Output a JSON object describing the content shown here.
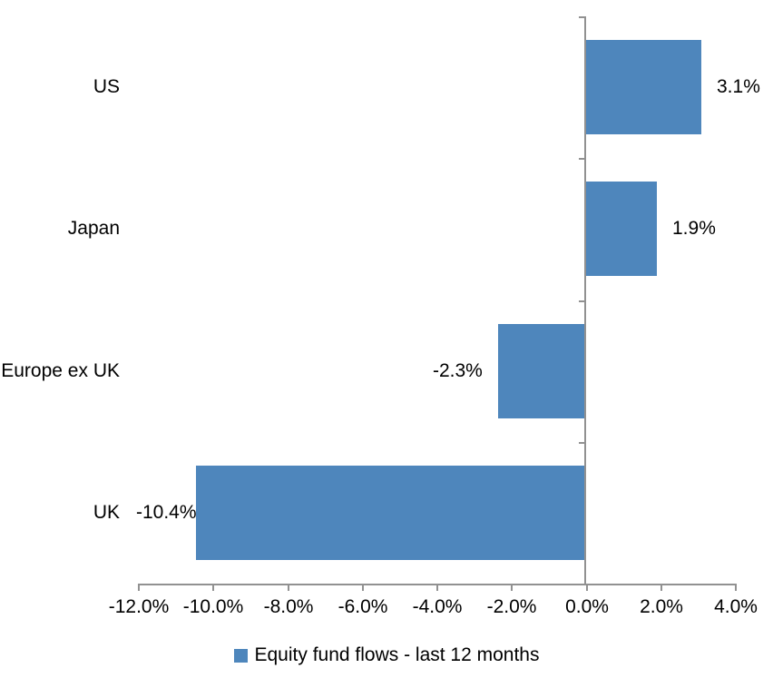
{
  "chart_data": {
    "type": "bar",
    "orientation": "horizontal",
    "title": "",
    "categories": [
      "US",
      "Japan",
      "Europe ex UK",
      "UK"
    ],
    "values": [
      3.1,
      1.9,
      -2.3,
      -10.4
    ],
    "data_labels": [
      "3.1%",
      "1.9%",
      "-2.3%",
      "-10.4%"
    ],
    "series": [
      {
        "name": "Equity fund flows - last 12 months",
        "values": [
          3.1,
          1.9,
          -2.3,
          -10.4
        ],
        "color": "#4E86BC"
      }
    ],
    "xlabel": "",
    "ylabel": "",
    "xlim": [
      -12,
      4
    ],
    "x_tick_step": 2,
    "x_tick_labels": [
      "-12.0%",
      "-10.0%",
      "-8.0%",
      "-6.0%",
      "-4.0%",
      "-2.0%",
      "0.0%",
      "2.0%",
      "4.0%"
    ],
    "grid": false,
    "legend_position": "bottom"
  },
  "legend": {
    "label": "Equity fund flows - last 12 months",
    "swatch_color": "#4E86BC"
  },
  "colors": {
    "bar": "#4E86BC",
    "axis": "#919191",
    "text": "#000000",
    "background": "#FFFFFF"
  }
}
